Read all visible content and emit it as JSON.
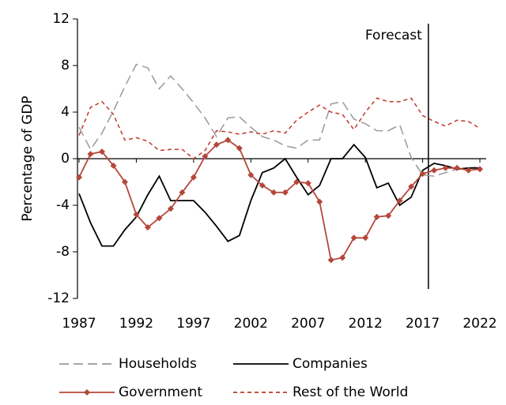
{
  "chart_data": {
    "type": "line",
    "y_label": "Percentage of GDP",
    "x": [
      1987,
      1988,
      1989,
      1990,
      1991,
      1992,
      1993,
      1994,
      1995,
      1996,
      1997,
      1998,
      1999,
      2000,
      2001,
      2002,
      2003,
      2004,
      2005,
      2006,
      2007,
      2008,
      2009,
      2010,
      2011,
      2012,
      2013,
      2014,
      2015,
      2016,
      2017,
      2018,
      2019,
      2020,
      2021,
      2022
    ],
    "xlim": [
      1987,
      2022
    ],
    "xticks": [
      1987,
      1992,
      1997,
      2002,
      2007,
      2012,
      2017,
      2022
    ],
    "ylim": [
      -12,
      12
    ],
    "yticks": [
      -12,
      -8,
      -4,
      0,
      4,
      8,
      12
    ],
    "annotations": [
      {
        "text": "Forecast",
        "x": 2017.5
      }
    ],
    "series": [
      {
        "name": "Households",
        "color": "#999999",
        "style": "dashed",
        "values": [
          2.7,
          0.8,
          2.2,
          4.1,
          6.2,
          8.1,
          7.8,
          6.0,
          7.1,
          6.0,
          4.8,
          3.5,
          1.9,
          3.5,
          3.6,
          2.7,
          1.9,
          1.6,
          1.1,
          0.9,
          1.6,
          1.6,
          4.7,
          4.9,
          3.4,
          3.0,
          2.4,
          2.4,
          2.9,
          0.1,
          -1.4,
          -1.5,
          -1.2,
          -0.9,
          -0.8,
          -0.7
        ]
      },
      {
        "name": "Companies",
        "color": "#000000",
        "style": "solid",
        "values": [
          -3.0,
          -5.5,
          -7.5,
          -7.5,
          -6.1,
          -5.0,
          -3.1,
          -1.5,
          -3.6,
          -3.6,
          -3.6,
          -4.6,
          -5.8,
          -7.1,
          -6.6,
          -3.6,
          -1.2,
          -0.8,
          0.0,
          -1.6,
          -3.1,
          -2.3,
          0.0,
          0.0,
          1.2,
          0.1,
          -2.5,
          -2.1,
          -4.0,
          -3.3,
          -1.0,
          -0.4,
          -0.6,
          -0.9,
          -0.8,
          -0.8
        ]
      },
      {
        "name": "Government",
        "color": "#b5473a",
        "style": "solid",
        "marker": "diamond",
        "values": [
          -1.6,
          0.4,
          0.6,
          -0.6,
          -2.0,
          -4.8,
          -5.9,
          -5.1,
          -4.3,
          -2.9,
          -1.6,
          0.2,
          1.2,
          1.6,
          0.9,
          -1.4,
          -2.3,
          -2.9,
          -2.9,
          -2.0,
          -2.1,
          -3.7,
          -8.7,
          -8.5,
          -6.8,
          -6.8,
          -5.0,
          -4.9,
          -3.6,
          -2.4,
          -1.3,
          -1.0,
          -0.8,
          -0.8,
          -1.0,
          -0.9
        ]
      },
      {
        "name": "Rest of the World",
        "color": "#c0392b",
        "style": "dotted",
        "values": [
          2.0,
          4.4,
          4.9,
          3.8,
          1.6,
          1.8,
          1.5,
          0.7,
          0.8,
          0.8,
          0.0,
          0.7,
          2.4,
          2.3,
          2.1,
          2.3,
          2.1,
          2.4,
          2.2,
          3.3,
          4.0,
          4.6,
          4.0,
          3.8,
          2.5,
          4.0,
          5.2,
          4.9,
          4.9,
          5.2,
          3.7,
          3.2,
          2.8,
          3.3,
          3.2,
          2.6
        ]
      }
    ]
  }
}
